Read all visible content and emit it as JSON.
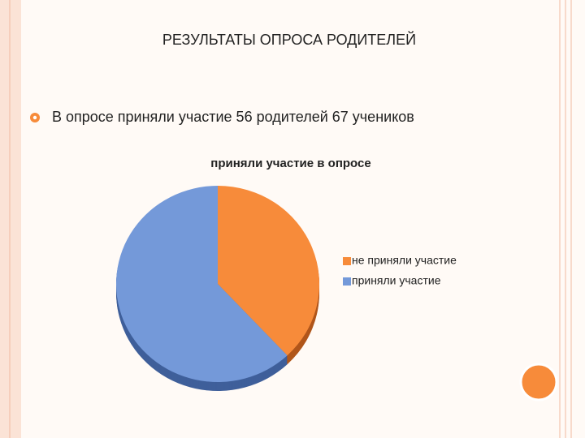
{
  "slide": {
    "title": "РЕЗУЛЬТАТЫ ОПРОСА РОДИТЕЛЕЙ",
    "bullet": "В опросе приняли участие 56 родителей 67 учеников"
  },
  "chart_data": {
    "type": "pie",
    "title": "приняли участие в опросе",
    "categories": [
      "не приняли участие",
      "приняли участие"
    ],
    "values": [
      38,
      62
    ],
    "colors": [
      "#f78b3a",
      "#7499d9"
    ],
    "side_colors": [
      "#b0561b",
      "#3f5f9a"
    ],
    "legend": "right"
  }
}
